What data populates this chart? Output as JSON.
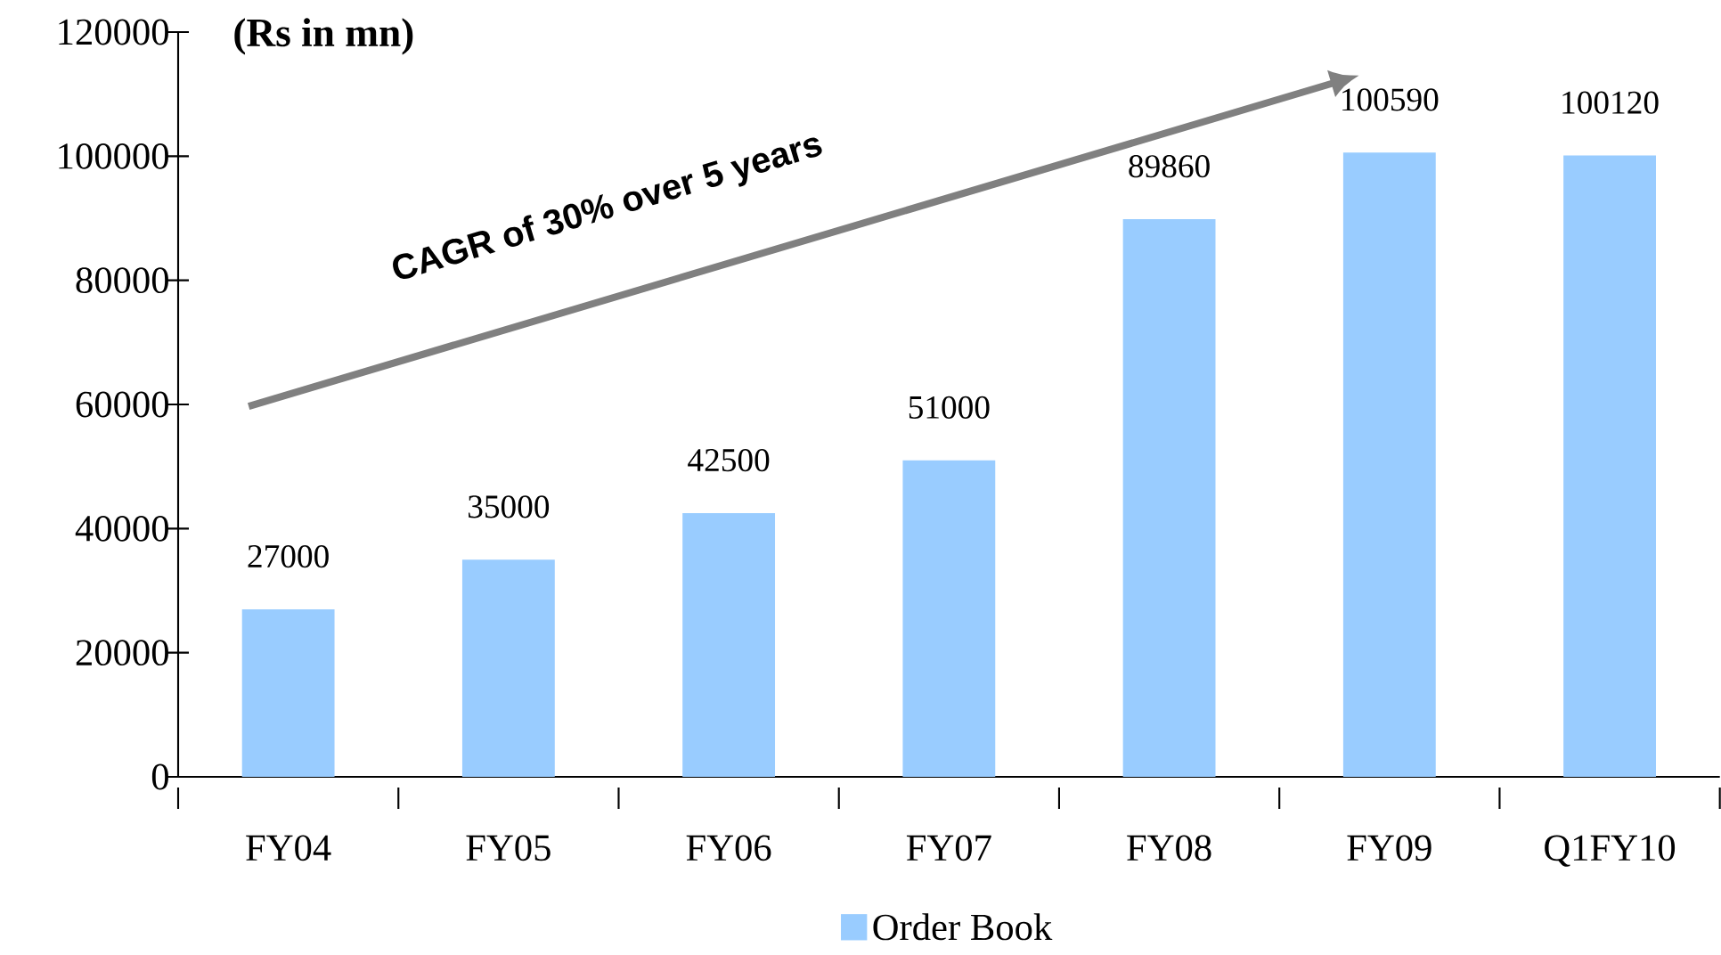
{
  "chart_data": {
    "type": "bar",
    "ylabel": "(Rs in mn)",
    "categories": [
      "FY04",
      "FY05",
      "FY06",
      "FY07",
      "FY08",
      "FY09",
      "Q1FY10"
    ],
    "series": [
      {
        "name": "Order Book",
        "color": "#99ccff",
        "values": [
          27000,
          35000,
          42500,
          51000,
          89860,
          100590,
          100120
        ]
      }
    ],
    "ylim": [
      0,
      120000
    ],
    "yticks": [
      0,
      20000,
      40000,
      60000,
      80000,
      100000,
      120000
    ],
    "data_labels": true,
    "legend": "bottom",
    "annotations": [
      "CAGR of 30% over 5 years"
    ]
  }
}
